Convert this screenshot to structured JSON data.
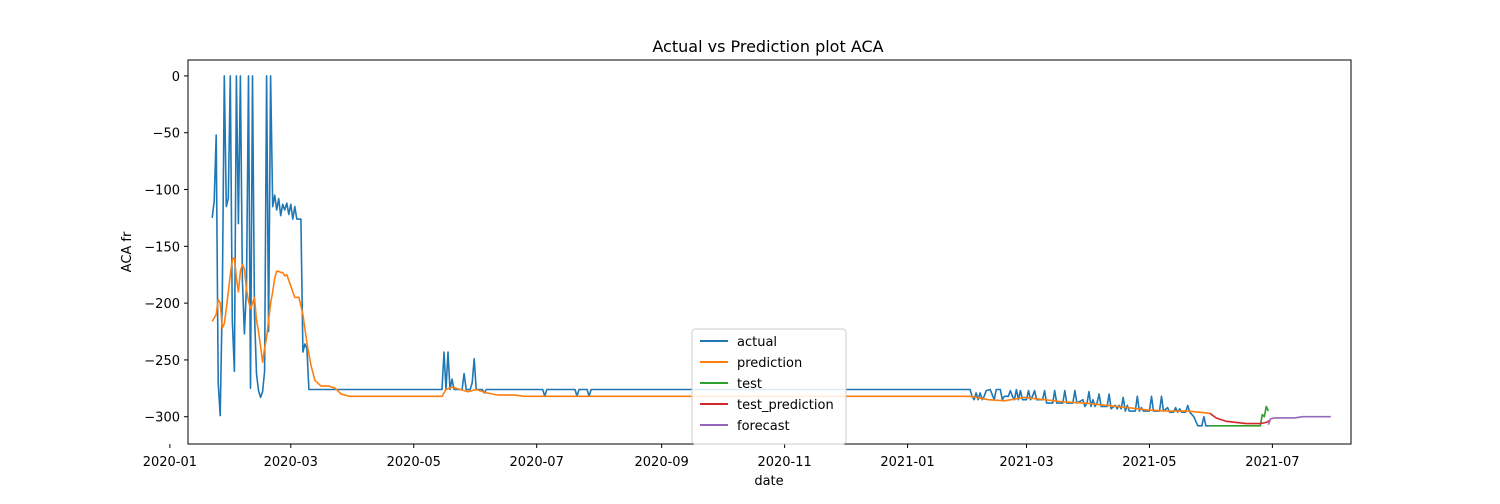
{
  "chart_data": {
    "type": "line",
    "title": "Actual vs Prediction plot ACA",
    "xlabel": "date",
    "ylabel": "ACA fr",
    "xlim": [
      "2020-01-10",
      "2021-08-09"
    ],
    "ylim": [
      -324,
      14
    ],
    "x_ticks": [
      "2020-01-01",
      "2020-03-01",
      "2020-05-01",
      "2020-07-01",
      "2020-09-01",
      "2020-11-01",
      "2021-01-01",
      "2021-03-01",
      "2021-05-01",
      "2021-07-01"
    ],
    "x_tick_labels": [
      "2020-01",
      "2020-03",
      "2020-05",
      "2020-07",
      "2020-09",
      "2020-11",
      "2021-01",
      "2021-03",
      "2021-05",
      "2021-07"
    ],
    "y_ticks": [
      0,
      -50,
      -100,
      -150,
      -200,
      -250,
      -300
    ],
    "y_tick_labels": [
      "0",
      "−50",
      "−100",
      "−150",
      "−200",
      "−250",
      "−300"
    ],
    "grid": false,
    "legend_position": "lower-center",
    "series": [
      {
        "name": "actual",
        "color": "#1f77b4",
        "points": [
          [
            "2020-01-22",
            -125
          ],
          [
            "2020-01-23",
            -110
          ],
          [
            "2020-01-24",
            -52
          ],
          [
            "2020-01-25",
            -270
          ],
          [
            "2020-01-26",
            -299
          ],
          [
            "2020-01-27",
            -195
          ],
          [
            "2020-01-28",
            0
          ],
          [
            "2020-01-29",
            -115
          ],
          [
            "2020-01-30",
            -108
          ],
          [
            "2020-01-31",
            0
          ],
          [
            "2020-02-01",
            -215
          ],
          [
            "2020-02-02",
            -260
          ],
          [
            "2020-02-03",
            0
          ],
          [
            "2020-02-04",
            -130
          ],
          [
            "2020-02-05",
            0
          ],
          [
            "2020-02-06",
            -180
          ],
          [
            "2020-02-07",
            -227
          ],
          [
            "2020-02-08",
            -185
          ],
          [
            "2020-02-09",
            0
          ],
          [
            "2020-02-10",
            -275
          ],
          [
            "2020-02-11",
            0
          ],
          [
            "2020-02-12",
            -210
          ],
          [
            "2020-02-13",
            -262
          ],
          [
            "2020-02-14",
            -277
          ],
          [
            "2020-02-15",
            -283
          ],
          [
            "2020-02-16",
            -278
          ],
          [
            "2020-02-17",
            -260
          ],
          [
            "2020-02-18",
            0
          ],
          [
            "2020-02-19",
            -225
          ],
          [
            "2020-02-20",
            0
          ],
          [
            "2020-02-21",
            -115
          ],
          [
            "2020-02-22",
            -105
          ],
          [
            "2020-02-23",
            -118
          ],
          [
            "2020-02-24",
            -108
          ],
          [
            "2020-02-25",
            -123
          ],
          [
            "2020-02-26",
            -113
          ],
          [
            "2020-02-27",
            -118
          ],
          [
            "2020-02-28",
            -112
          ],
          [
            "2020-02-29",
            -122
          ],
          [
            "2020-03-01",
            -113
          ],
          [
            "2020-03-02",
            -126
          ],
          [
            "2020-03-03",
            -115
          ],
          [
            "2020-03-04",
            -126
          ],
          [
            "2020-03-05",
            -126
          ],
          [
            "2020-03-06",
            -126
          ],
          [
            "2020-03-07",
            -243
          ],
          [
            "2020-03-08",
            -236
          ],
          [
            "2020-03-09",
            -240
          ],
          [
            "2020-03-10",
            -276
          ],
          [
            "2020-05-15",
            -276
          ],
          [
            "2020-05-16",
            -243
          ],
          [
            "2020-05-17",
            -276
          ],
          [
            "2020-05-18",
            -243
          ],
          [
            "2020-05-19",
            -276
          ],
          [
            "2020-05-20",
            -267
          ],
          [
            "2020-05-21",
            -276
          ],
          [
            "2020-05-25",
            -276
          ],
          [
            "2020-05-26",
            -262
          ],
          [
            "2020-05-27",
            -276
          ],
          [
            "2020-05-29",
            -276
          ],
          [
            "2020-05-30",
            -270
          ],
          [
            "2020-05-31",
            -249
          ],
          [
            "2020-06-01",
            -276
          ],
          [
            "2020-06-04",
            -276
          ],
          [
            "2020-06-05",
            -279
          ],
          [
            "2020-06-06",
            -276
          ],
          [
            "2020-07-04",
            -276
          ],
          [
            "2020-07-05",
            -282
          ],
          [
            "2020-07-06",
            -276
          ],
          [
            "2020-07-20",
            -276
          ],
          [
            "2020-07-21",
            -282
          ],
          [
            "2020-07-22",
            -276
          ],
          [
            "2020-07-26",
            -276
          ],
          [
            "2020-07-27",
            -282
          ],
          [
            "2020-07-28",
            -276
          ],
          [
            "2021-02-01",
            -276
          ],
          [
            "2021-02-02",
            -282
          ],
          [
            "2021-02-03",
            -285
          ],
          [
            "2021-02-04",
            -279
          ],
          [
            "2021-02-05",
            -285
          ],
          [
            "2021-02-06",
            -279
          ],
          [
            "2021-02-07",
            -285
          ],
          [
            "2021-02-08",
            -282
          ],
          [
            "2021-02-09",
            -277
          ],
          [
            "2021-02-11",
            -276
          ],
          [
            "2021-02-13",
            -285
          ],
          [
            "2021-02-14",
            -276
          ],
          [
            "2021-02-16",
            -276
          ],
          [
            "2021-02-17",
            -285
          ],
          [
            "2021-02-18",
            -282
          ],
          [
            "2021-02-20",
            -282
          ],
          [
            "2021-02-21",
            -277
          ],
          [
            "2021-02-22",
            -282
          ],
          [
            "2021-02-23",
            -285
          ],
          [
            "2021-02-24",
            -276
          ],
          [
            "2021-02-25",
            -285
          ],
          [
            "2021-02-26",
            -277
          ],
          [
            "2021-02-27",
            -285
          ],
          [
            "2021-03-01",
            -285
          ],
          [
            "2021-03-02",
            -277
          ],
          [
            "2021-03-03",
            -285
          ],
          [
            "2021-03-04",
            -282
          ],
          [
            "2021-03-05",
            -277
          ],
          [
            "2021-03-06",
            -285
          ],
          [
            "2021-03-09",
            -285
          ],
          [
            "2021-03-10",
            -277
          ],
          [
            "2021-03-11",
            -288
          ],
          [
            "2021-03-14",
            -288
          ],
          [
            "2021-03-15",
            -277
          ],
          [
            "2021-03-16",
            -288
          ],
          [
            "2021-03-19",
            -288
          ],
          [
            "2021-03-20",
            -277
          ],
          [
            "2021-03-21",
            -288
          ],
          [
            "2021-03-24",
            -288
          ],
          [
            "2021-03-25",
            -277
          ],
          [
            "2021-03-26",
            -288
          ],
          [
            "2021-03-29",
            -285
          ],
          [
            "2021-03-30",
            -291
          ],
          [
            "2021-03-31",
            -288
          ],
          [
            "2021-04-01",
            -278
          ],
          [
            "2021-04-02",
            -291
          ],
          [
            "2021-04-03",
            -285
          ],
          [
            "2021-04-04",
            -291
          ],
          [
            "2021-04-05",
            -288
          ],
          [
            "2021-04-06",
            -280
          ],
          [
            "2021-04-07",
            -291
          ],
          [
            "2021-04-10",
            -291
          ],
          [
            "2021-04-11",
            -280
          ],
          [
            "2021-04-12",
            -293
          ],
          [
            "2021-04-14",
            -290
          ],
          [
            "2021-04-15",
            -293
          ],
          [
            "2021-04-16",
            -290
          ],
          [
            "2021-04-17",
            -293
          ],
          [
            "2021-04-18",
            -283
          ],
          [
            "2021-04-19",
            -295
          ],
          [
            "2021-04-20",
            -290
          ],
          [
            "2021-04-21",
            -295
          ],
          [
            "2021-04-24",
            -295
          ],
          [
            "2021-04-25",
            -282
          ],
          [
            "2021-04-26",
            -295
          ],
          [
            "2021-04-27",
            -292
          ],
          [
            "2021-04-28",
            -295
          ],
          [
            "2021-05-01",
            -295
          ],
          [
            "2021-05-02",
            -282
          ],
          [
            "2021-05-03",
            -295
          ],
          [
            "2021-05-06",
            -295
          ],
          [
            "2021-05-07",
            -282
          ],
          [
            "2021-05-08",
            -295
          ],
          [
            "2021-05-10",
            -292
          ],
          [
            "2021-05-11",
            -296
          ],
          [
            "2021-05-13",
            -296
          ],
          [
            "2021-05-14",
            -292
          ],
          [
            "2021-05-15",
            -296
          ],
          [
            "2021-05-16",
            -293
          ],
          [
            "2021-05-17",
            -296
          ],
          [
            "2021-05-19",
            -296
          ],
          [
            "2021-05-20",
            -290
          ],
          [
            "2021-05-21",
            -296
          ],
          [
            "2021-05-23",
            -300
          ],
          [
            "2021-05-25",
            -308
          ],
          [
            "2021-05-27",
            -308
          ],
          [
            "2021-05-28",
            -300
          ],
          [
            "2021-05-29",
            -308
          ],
          [
            "2021-05-31",
            -308
          ]
        ]
      },
      {
        "name": "prediction",
        "color": "#ff7f0e",
        "points": [
          [
            "2020-01-22",
            -216
          ],
          [
            "2020-01-23",
            -213
          ],
          [
            "2020-01-24",
            -210
          ],
          [
            "2020-01-25",
            -197
          ],
          [
            "2020-01-26",
            -200
          ],
          [
            "2020-01-27",
            -222
          ],
          [
            "2020-01-28",
            -218
          ],
          [
            "2020-01-29",
            -205
          ],
          [
            "2020-01-30",
            -190
          ],
          [
            "2020-01-31",
            -175
          ],
          [
            "2020-02-01",
            -162
          ],
          [
            "2020-02-02",
            -160
          ],
          [
            "2020-02-03",
            -178
          ],
          [
            "2020-02-04",
            -190
          ],
          [
            "2020-02-05",
            -172
          ],
          [
            "2020-02-06",
            -166
          ],
          [
            "2020-02-07",
            -170
          ],
          [
            "2020-02-08",
            -188
          ],
          [
            "2020-02-09",
            -198
          ],
          [
            "2020-02-10",
            -205
          ],
          [
            "2020-02-11",
            -200
          ],
          [
            "2020-02-12",
            -195
          ],
          [
            "2020-02-13",
            -215
          ],
          [
            "2020-02-14",
            -225
          ],
          [
            "2020-02-15",
            -238
          ],
          [
            "2020-02-16",
            -252
          ],
          [
            "2020-02-17",
            -240
          ],
          [
            "2020-02-18",
            -230
          ],
          [
            "2020-02-19",
            -215
          ],
          [
            "2020-02-20",
            -200
          ],
          [
            "2020-02-21",
            -190
          ],
          [
            "2020-02-22",
            -178
          ],
          [
            "2020-02-23",
            -172
          ],
          [
            "2020-02-24",
            -172
          ],
          [
            "2020-02-25",
            -173
          ],
          [
            "2020-02-26",
            -173
          ],
          [
            "2020-02-27",
            -176
          ],
          [
            "2020-02-28",
            -175
          ],
          [
            "2020-03-01",
            -185
          ],
          [
            "2020-03-03",
            -195
          ],
          [
            "2020-03-05",
            -195
          ],
          [
            "2020-03-07",
            -210
          ],
          [
            "2020-03-09",
            -235
          ],
          [
            "2020-03-11",
            -255
          ],
          [
            "2020-03-13",
            -268
          ],
          [
            "2020-03-16",
            -273
          ],
          [
            "2020-03-20",
            -273
          ],
          [
            "2020-03-23",
            -275
          ],
          [
            "2020-03-26",
            -280
          ],
          [
            "2020-03-30",
            -282
          ],
          [
            "2020-05-15",
            -282
          ],
          [
            "2020-05-17",
            -276
          ],
          [
            "2020-05-20",
            -274
          ],
          [
            "2020-05-24",
            -276
          ],
          [
            "2020-05-28",
            -278
          ],
          [
            "2020-06-01",
            -276
          ],
          [
            "2020-06-06",
            -279
          ],
          [
            "2020-06-12",
            -281
          ],
          [
            "2020-06-20",
            -281
          ],
          [
            "2020-06-25",
            -282
          ],
          [
            "2020-07-25",
            -282
          ],
          [
            "2020-07-31",
            -282
          ],
          [
            "2021-02-01",
            -282
          ],
          [
            "2021-02-10",
            -285
          ],
          [
            "2021-02-18",
            -286
          ],
          [
            "2021-02-28",
            -283
          ],
          [
            "2021-03-10",
            -285
          ],
          [
            "2021-03-20",
            -287
          ],
          [
            "2021-03-30",
            -288
          ],
          [
            "2021-04-10",
            -290
          ],
          [
            "2021-04-20",
            -292
          ],
          [
            "2021-04-30",
            -294
          ],
          [
            "2021-05-10",
            -295
          ],
          [
            "2021-05-20",
            -295
          ],
          [
            "2021-05-31",
            -297
          ]
        ]
      },
      {
        "name": "test",
        "color": "#2ca02c",
        "points": [
          [
            "2021-05-31",
            -308
          ],
          [
            "2021-06-10",
            -308
          ],
          [
            "2021-06-20",
            -308
          ],
          [
            "2021-06-25",
            -308
          ],
          [
            "2021-06-26",
            -298
          ],
          [
            "2021-06-27",
            -300
          ],
          [
            "2021-06-28",
            -291
          ],
          [
            "2021-06-29",
            -295
          ]
        ]
      },
      {
        "name": "test_prediction",
        "color": "#d62728",
        "points": [
          [
            "2021-05-31",
            -297
          ],
          [
            "2021-06-03",
            -301
          ],
          [
            "2021-06-08",
            -304
          ],
          [
            "2021-06-13",
            -305
          ],
          [
            "2021-06-18",
            -306
          ],
          [
            "2021-06-22",
            -306
          ],
          [
            "2021-06-25",
            -306
          ],
          [
            "2021-06-28",
            -305
          ],
          [
            "2021-06-30",
            -303
          ]
        ]
      },
      {
        "name": "forecast",
        "color": "#9467bd",
        "points": [
          [
            "2021-06-29",
            -307
          ],
          [
            "2021-06-30",
            -302
          ],
          [
            "2021-07-02",
            -301
          ],
          [
            "2021-07-06",
            -301
          ],
          [
            "2021-07-12",
            -301
          ],
          [
            "2021-07-16",
            -300
          ],
          [
            "2021-07-20",
            -300
          ],
          [
            "2021-07-25",
            -300
          ],
          [
            "2021-07-30",
            -300
          ]
        ]
      }
    ]
  }
}
